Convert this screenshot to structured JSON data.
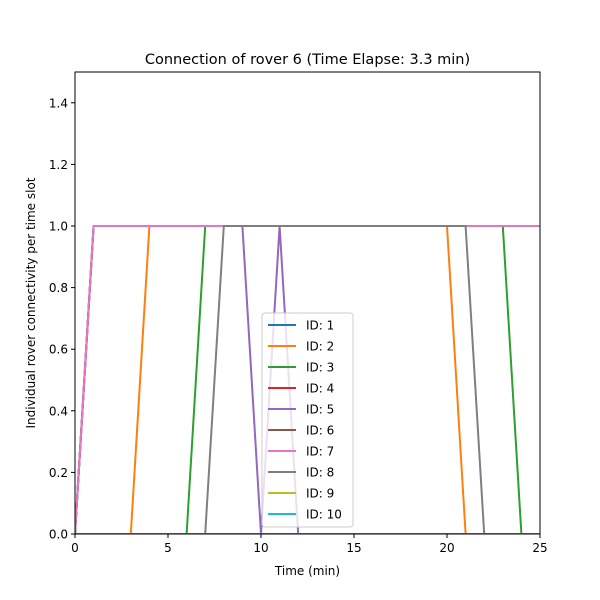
{
  "chart_data": {
    "type": "line",
    "title": "Connection of rover 6 (Time Elapse: 3.3 min)",
    "xlabel": "Time (min)",
    "ylabel": "Individual rover connectivity per time slot",
    "xlim": [
      0,
      25
    ],
    "ylim": [
      0,
      1.5
    ],
    "xticks": [
      0,
      5,
      10,
      15,
      20,
      25
    ],
    "xtick_labels": [
      "0",
      "5",
      "10",
      "15",
      "20",
      "25"
    ],
    "yticks": [
      0,
      0.2,
      0.4,
      0.6,
      0.8,
      1.0,
      1.2,
      1.4
    ],
    "ytick_labels": [
      "0.0",
      "0.2",
      "0.4",
      "0.6",
      "0.8",
      "1.0",
      "1.2",
      "1.4"
    ],
    "grid": false,
    "legend_position": "bottom-center",
    "series": [
      {
        "name": "ID: 1",
        "color": "#1f77b4",
        "x": [
          0,
          1,
          25
        ],
        "y": [
          0,
          1,
          1
        ]
      },
      {
        "name": "ID: 2",
        "color": "#ff7f0e",
        "x": [
          0,
          3,
          4,
          20,
          21,
          25
        ],
        "y": [
          0,
          0,
          1,
          1,
          0,
          0
        ]
      },
      {
        "name": "ID: 3",
        "color": "#2ca02c",
        "x": [
          0,
          6,
          7,
          23,
          24,
          25
        ],
        "y": [
          0,
          0,
          1,
          1,
          0,
          0
        ]
      },
      {
        "name": "ID: 4",
        "color": "#d62728",
        "x": [
          0,
          1,
          25
        ],
        "y": [
          0,
          1,
          1
        ]
      },
      {
        "name": "ID: 5",
        "color": "#9467bd",
        "x": [
          0,
          1,
          9,
          10,
          11,
          12,
          25
        ],
        "y": [
          0,
          1,
          1,
          0,
          1,
          0,
          0
        ]
      },
      {
        "name": "ID: 6",
        "color": "#8c564b",
        "x": [
          0,
          1,
          25
        ],
        "y": [
          0,
          1,
          1
        ]
      },
      {
        "name": "ID: 7",
        "color": "#e377c2",
        "x": [
          0,
          1,
          25
        ],
        "y": [
          0,
          1,
          1
        ]
      },
      {
        "name": "ID: 8",
        "color": "#7f7f7f",
        "x": [
          0,
          7,
          8,
          21,
          22,
          25
        ],
        "y": [
          0,
          0,
          1,
          1,
          0,
          0
        ]
      },
      {
        "name": "ID: 9",
        "color": "#bcbd22",
        "x": [
          0,
          25
        ],
        "y": [
          0,
          0
        ]
      },
      {
        "name": "ID: 10",
        "color": "#17becf",
        "x": [
          0,
          25
        ],
        "y": [
          0,
          0
        ]
      }
    ]
  }
}
